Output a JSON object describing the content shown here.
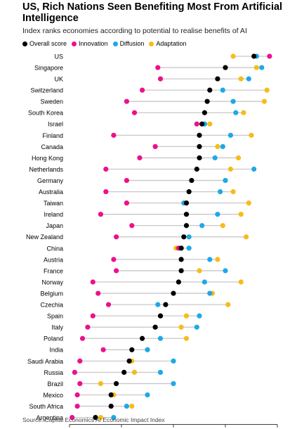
{
  "chart_data": {
    "type": "dot-plot",
    "title": "US, Rich Nations Seen Benefiting Most From Artificial Intelligence",
    "subtitle": "Index ranks economies according to potential to realise benefits of AI",
    "source": "Source: Capital Economics AI Economic Impact Index",
    "xlim": [
      0,
      80
    ],
    "xticks": [
      0,
      20,
      40,
      60,
      80
    ],
    "legend_placement": "top-left",
    "series": [
      {
        "key": "overall",
        "name": "Overall score",
        "color": "#000000"
      },
      {
        "key": "innovation",
        "name": "Innovation",
        "color": "#ee0f8d"
      },
      {
        "key": "diffusion",
        "name": "Diffusion",
        "color": "#1ea9e6"
      },
      {
        "key": "adaptation",
        "name": "Adaptation",
        "color": "#f6bd16"
      }
    ],
    "countries": [
      {
        "name": "US",
        "overall": 71,
        "innovation": 77,
        "diffusion": 72,
        "adaptation": 63
      },
      {
        "name": "Singapore",
        "overall": 60,
        "innovation": 34,
        "diffusion": 74,
        "adaptation": 72
      },
      {
        "name": "UK",
        "overall": 57,
        "innovation": 35,
        "diffusion": 69,
        "adaptation": 66
      },
      {
        "name": "Switzerland",
        "overall": 54,
        "innovation": 28,
        "diffusion": 59,
        "adaptation": 76
      },
      {
        "name": "Sweden",
        "overall": 53,
        "innovation": 22,
        "diffusion": 63,
        "adaptation": 75
      },
      {
        "name": "South Korea",
        "overall": 52,
        "innovation": 25,
        "diffusion": 64,
        "adaptation": 67
      },
      {
        "name": "Israel",
        "overall": 51,
        "innovation": 49,
        "diffusion": 52,
        "adaptation": 54
      },
      {
        "name": "Finland",
        "overall": 50,
        "innovation": 17,
        "diffusion": 62,
        "adaptation": 70
      },
      {
        "name": "Canada",
        "overall": 50,
        "innovation": 33,
        "diffusion": 59,
        "adaptation": 57
      },
      {
        "name": "Hong Kong",
        "overall": 50,
        "innovation": 27,
        "diffusion": 56,
        "adaptation": 65
      },
      {
        "name": "Netherlands",
        "overall": 49,
        "innovation": 14,
        "diffusion": 71,
        "adaptation": 62
      },
      {
        "name": "Germany",
        "overall": 47,
        "innovation": 22,
        "diffusion": 60,
        "adaptation": 60
      },
      {
        "name": "Australia",
        "overall": 46,
        "innovation": 14,
        "diffusion": 58,
        "adaptation": 63
      },
      {
        "name": "Taiwan",
        "overall": 45,
        "innovation": 22,
        "diffusion": 44,
        "adaptation": 69
      },
      {
        "name": "Ireland",
        "overall": 45,
        "innovation": 12,
        "diffusion": 57,
        "adaptation": 66
      },
      {
        "name": "Japan",
        "overall": 45,
        "innovation": 24,
        "diffusion": 51,
        "adaptation": 59
      },
      {
        "name": "New Zealand",
        "overall": 44,
        "innovation": 18,
        "diffusion": 46,
        "adaptation": 68
      },
      {
        "name": "China",
        "overall": 43,
        "innovation": 42,
        "diffusion": 46,
        "adaptation": 41
      },
      {
        "name": "Austria",
        "overall": 43,
        "innovation": 17,
        "diffusion": 54,
        "adaptation": 57
      },
      {
        "name": "France",
        "overall": 43,
        "innovation": 18,
        "diffusion": 60,
        "adaptation": 50
      },
      {
        "name": "Norway",
        "overall": 42,
        "innovation": 9,
        "diffusion": 52,
        "adaptation": 66
      },
      {
        "name": "Belgium",
        "overall": 40,
        "innovation": 11,
        "diffusion": 54,
        "adaptation": 55
      },
      {
        "name": "Czechia",
        "overall": 37,
        "innovation": 15,
        "diffusion": 34,
        "adaptation": 61
      },
      {
        "name": "Spain",
        "overall": 35,
        "innovation": 9,
        "diffusion": 50,
        "adaptation": 45
      },
      {
        "name": "Italy",
        "overall": 33,
        "innovation": 7,
        "diffusion": 49,
        "adaptation": 43
      },
      {
        "name": "Poland",
        "overall": 28,
        "innovation": 5,
        "diffusion": 35,
        "adaptation": 45
      },
      {
        "name": "India",
        "overall": 24,
        "innovation": 13,
        "diffusion": 30,
        "adaptation": 30
      },
      {
        "name": "Saudi Arabia",
        "overall": 23,
        "innovation": 4,
        "diffusion": 40,
        "adaptation": 24
      },
      {
        "name": "Russia",
        "overall": 21,
        "innovation": 2,
        "diffusion": 35,
        "adaptation": 25
      },
      {
        "name": "Brazil",
        "overall": 18,
        "innovation": 4,
        "diffusion": 40,
        "adaptation": 12
      },
      {
        "name": "Mexico",
        "overall": 16,
        "innovation": 3,
        "diffusion": 30,
        "adaptation": 17
      },
      {
        "name": "South Africa",
        "overall": 16,
        "innovation": 3,
        "diffusion": 22,
        "adaptation": 24
      },
      {
        "name": "Argentina",
        "overall": 10,
        "innovation": 1,
        "diffusion": 17,
        "adaptation": 12
      }
    ]
  }
}
